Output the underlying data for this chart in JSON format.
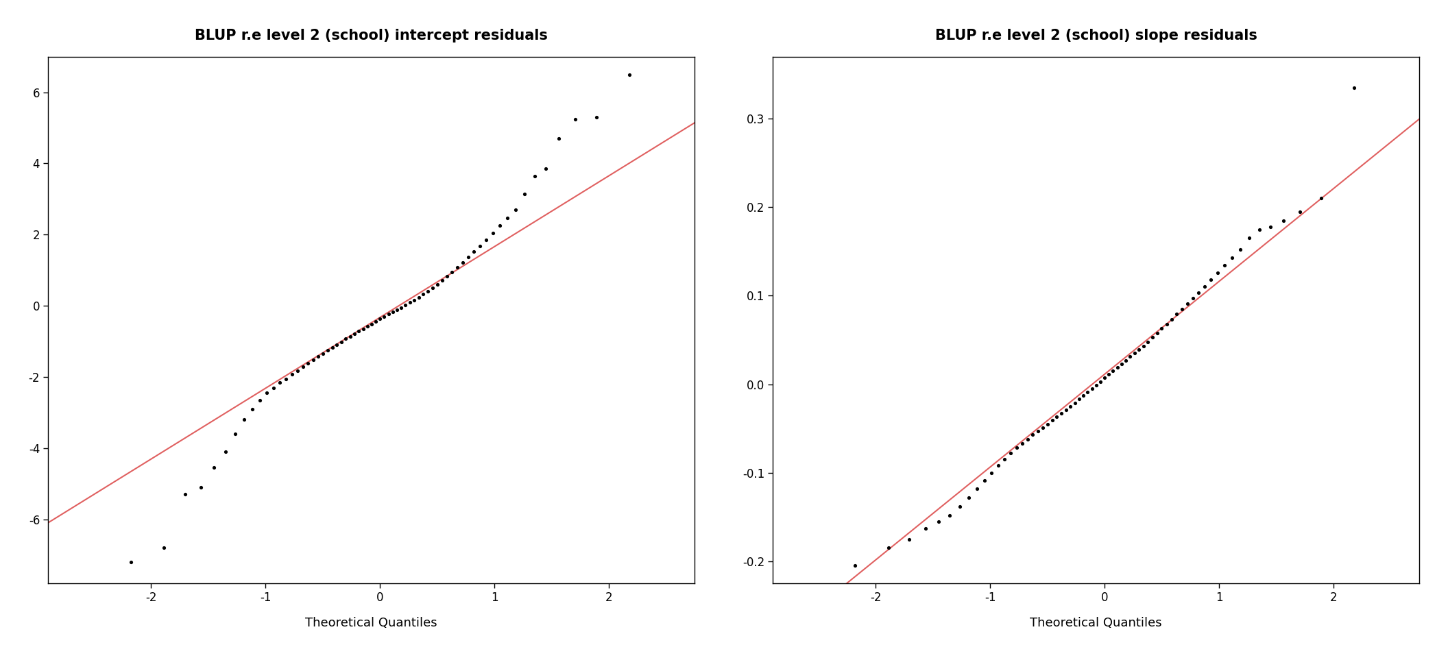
{
  "title1": "BLUP r.e level 2 (school) intercept residuals",
  "title2": "BLUP r.e level 2 (school) slope residuals",
  "xlabel": "Theoretical Quantiles",
  "title_fontsize": 15,
  "label_fontsize": 13,
  "tick_fontsize": 12,
  "dot_color": "#000000",
  "line_color": "#e06060",
  "dot_size": 14,
  "background_color": "#ffffff",
  "plot1_xlim": [
    -2.9,
    2.75
  ],
  "plot1_ylim": [
    -7.8,
    7.0
  ],
  "plot2_xlim": [
    -2.9,
    2.75
  ],
  "plot2_ylim": [
    -0.225,
    0.37
  ],
  "intercept_resids": [
    -7.2,
    -6.8,
    -5.3,
    -5.1,
    -4.55,
    -4.1,
    -3.6,
    -3.2,
    -2.9,
    -2.65,
    -2.45,
    -2.3,
    -2.15,
    -2.05,
    -1.92,
    -1.82,
    -1.72,
    -1.62,
    -1.52,
    -1.43,
    -1.34,
    -1.25,
    -1.17,
    -1.09,
    -1.01,
    -0.93,
    -0.86,
    -0.79,
    -0.72,
    -0.65,
    -0.58,
    -0.51,
    -0.44,
    -0.37,
    -0.3,
    -0.23,
    -0.17,
    -0.11,
    -0.05,
    0.02,
    0.09,
    0.16,
    0.24,
    0.32,
    0.4,
    0.5,
    0.6,
    0.71,
    0.83,
    0.95,
    1.08,
    1.22,
    1.37,
    1.53,
    1.68,
    1.85,
    2.05,
    2.25,
    2.47,
    2.7,
    3.15,
    3.65,
    3.85,
    4.7,
    5.25,
    5.3,
    6.5
  ],
  "slope_resids": [
    -0.205,
    -0.185,
    -0.175,
    -0.163,
    -0.155,
    -0.148,
    -0.138,
    -0.128,
    -0.118,
    -0.109,
    -0.1,
    -0.092,
    -0.085,
    -0.078,
    -0.072,
    -0.067,
    -0.062,
    -0.057,
    -0.053,
    -0.049,
    -0.045,
    -0.041,
    -0.037,
    -0.033,
    -0.029,
    -0.025,
    -0.021,
    -0.017,
    -0.013,
    -0.009,
    -0.005,
    -0.001,
    0.003,
    0.007,
    0.011,
    0.015,
    0.019,
    0.023,
    0.027,
    0.031,
    0.035,
    0.039,
    0.043,
    0.048,
    0.053,
    0.058,
    0.063,
    0.068,
    0.073,
    0.079,
    0.085,
    0.091,
    0.097,
    0.103,
    0.11,
    0.118,
    0.126,
    0.134,
    0.143,
    0.152,
    0.165,
    0.175,
    0.178,
    0.185,
    0.195,
    0.21,
    0.335
  ],
  "yticks1": [
    -6,
    -4,
    -2,
    0,
    2,
    4,
    6
  ],
  "yticklabels1": [
    "-6",
    "-4",
    "-2",
    "0",
    "2",
    "4",
    "6"
  ],
  "yticks2": [
    -0.2,
    -0.1,
    0.0,
    0.1,
    0.2,
    0.3
  ],
  "yticklabels2": [
    "-0.2",
    "-0.1",
    "0.0",
    "0.1",
    "0.2",
    "0.3"
  ],
  "xticks": [
    -2,
    -1,
    0,
    1,
    2
  ],
  "xticklabels": [
    "-2",
    "-1",
    "0",
    "1",
    "2"
  ]
}
